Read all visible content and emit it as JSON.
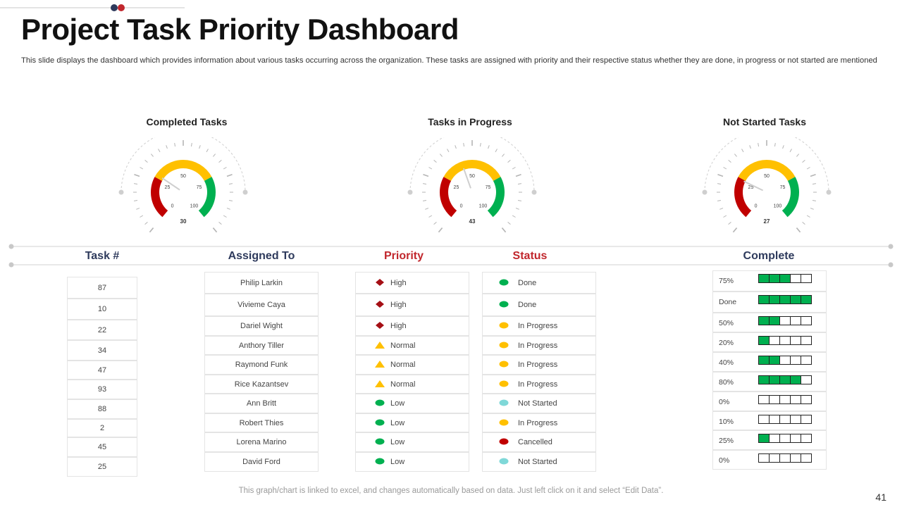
{
  "title": "Project Task Priority Dashboard",
  "description": "This slide displays the dashboard which provides information about various tasks occurring across the organization. These tasks are assigned with priority and their respective status whether  they are done,  in progress or not started are mentioned",
  "colors": {
    "accent_navy": "#2e3a5c",
    "accent_red": "#c1272d",
    "gauge_red": "#c00000",
    "gauge_yellow": "#ffc000",
    "gauge_green": "#00b050",
    "status_cyan": "#7fd8d8"
  },
  "gauges": [
    {
      "title": "Completed Tasks",
      "value": 30,
      "value_label": "30",
      "scale_labels": [
        "0",
        "25",
        "50",
        "75",
        "100"
      ]
    },
    {
      "title": "Tasks in Progress",
      "value": 43,
      "value_label": "43",
      "scale_labels": [
        "0",
        "25",
        "50",
        "75",
        "100"
      ]
    },
    {
      "title": "Not Started Tasks",
      "value": 27,
      "value_label": "27",
      "scale_labels": [
        "0",
        "25",
        "50",
        "75",
        "100"
      ]
    }
  ],
  "table": {
    "headers": {
      "task": "Task  #",
      "assigned": "Assigned To",
      "priority": "Priority",
      "status": "Status",
      "complete": "Complete"
    },
    "rows": [
      {
        "task": "87",
        "assigned": "Philip  Larkin",
        "priority": "High",
        "priority_icon": "diamond-icon",
        "status": "Done",
        "status_color": "#00b050",
        "complete_label": "75%",
        "complete_fill": 3
      },
      {
        "task": "10",
        "assigned": "Vivieme Caya",
        "priority": "High",
        "priority_icon": "diamond-icon",
        "status": "Done",
        "status_color": "#00b050",
        "complete_label": "Done",
        "complete_fill": 5
      },
      {
        "task": "22",
        "assigned": "Dariel Wight",
        "priority": "High",
        "priority_icon": "diamond-icon",
        "status": "In Progress",
        "status_color": "#ffc000",
        "complete_label": "50%",
        "complete_fill": 2
      },
      {
        "task": "34",
        "assigned": "Anthory Tiller",
        "priority": "Normal",
        "priority_icon": "triangle-icon",
        "status": "In Progress",
        "status_color": "#ffc000",
        "complete_label": "20%",
        "complete_fill": 1
      },
      {
        "task": "47",
        "assigned": "Raymond Funk",
        "priority": "Normal",
        "priority_icon": "triangle-icon",
        "status": "In Progress",
        "status_color": "#ffc000",
        "complete_label": "40%",
        "complete_fill": 2
      },
      {
        "task": "93",
        "assigned": "Rice Kazantsev",
        "priority": "Normal",
        "priority_icon": "triangle-icon",
        "status": "In Progress",
        "status_color": "#ffc000",
        "complete_label": "80%",
        "complete_fill": 4
      },
      {
        "task": "88",
        "assigned": "Ann Britt",
        "priority": "Low",
        "priority_icon": "ellipse-icon",
        "status": "Not Started",
        "status_color": "#7fd8d8",
        "complete_label": "0%",
        "complete_fill": 0
      },
      {
        "task": "2",
        "assigned": "Robert Thies",
        "priority": "Low",
        "priority_icon": "ellipse-icon",
        "status": "In Progress",
        "status_color": "#ffc000",
        "complete_label": "10%",
        "complete_fill": 0
      },
      {
        "task": "45",
        "assigned": "Lorena Marino",
        "priority": "Low",
        "priority_icon": "ellipse-icon",
        "status": "Cancelled",
        "status_color": "#c00000",
        "complete_label": "25%",
        "complete_fill": 1
      },
      {
        "task": "25",
        "assigned": "David Ford",
        "priority": "Low",
        "priority_icon": "ellipse-icon",
        "status": "Not Started",
        "status_color": "#7fd8d8",
        "complete_label": "0%",
        "complete_fill": 0
      }
    ]
  },
  "footer": "This graph/chart is linked to excel,  and changes automatically based on data. Just left click on it and select “Edit Data”.",
  "page_number": "41"
}
